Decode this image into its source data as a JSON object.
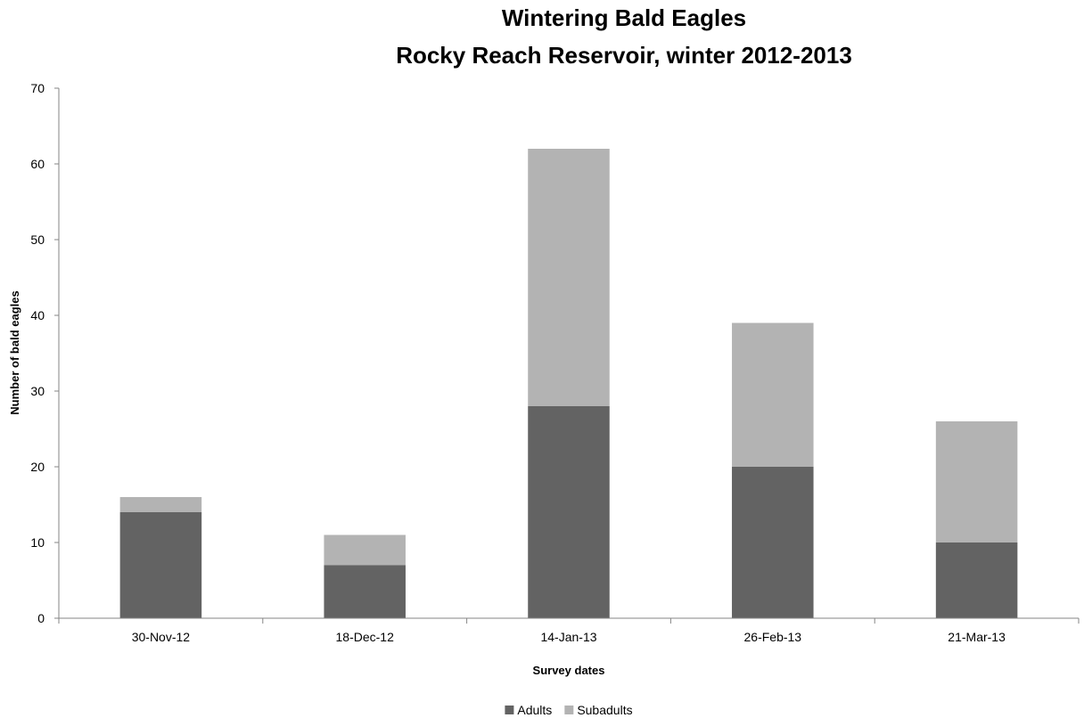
{
  "chart_data": {
    "type": "bar",
    "stacked": true,
    "title": [
      "Wintering Bald Eagles",
      "Rocky Reach Reservoir, winter 2012-2013"
    ],
    "xlabel": "Survey dates",
    "ylabel": "Number of bald eagles",
    "categories": [
      "30-Nov-12",
      "18-Dec-12",
      "14-Jan-13",
      "26-Feb-13",
      "21-Mar-13"
    ],
    "series": [
      {
        "name": "Adults",
        "values": [
          14,
          7,
          28,
          20,
          10
        ],
        "color": "#636363"
      },
      {
        "name": "Subadults",
        "values": [
          2,
          4,
          34,
          19,
          16
        ],
        "color": "#b3b3b3"
      }
    ],
    "ylim": [
      0,
      70
    ],
    "yticks": [
      0,
      10,
      20,
      30,
      40,
      50,
      60,
      70
    ],
    "grid": false,
    "legend": "bottom"
  }
}
